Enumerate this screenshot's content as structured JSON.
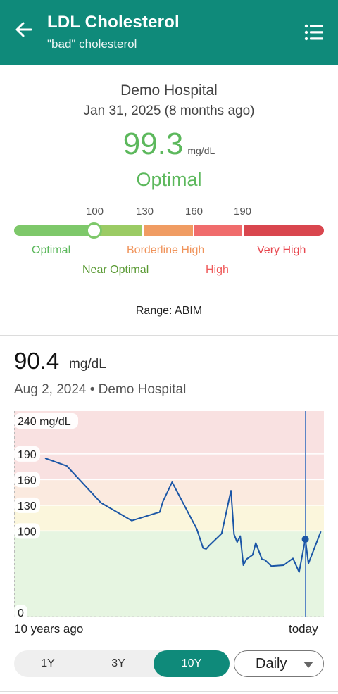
{
  "header": {
    "title": "LDL Cholesterol",
    "subtitle": "\"bad\" cholesterol",
    "back_icon": "arrow-left-icon",
    "menu_icon": "list-icon"
  },
  "latest": {
    "source": "Demo Hospital",
    "date": "Jan 31, 2025 (8 months ago)",
    "value": "99.3",
    "unit": "mg/dL",
    "status": "Optimal"
  },
  "range_bar": {
    "current_value": 99.3,
    "ticks": [
      "100",
      "130",
      "160",
      "190"
    ],
    "zones": {
      "optimal": "Optimal",
      "near_optimal": "Near Optimal",
      "borderline_high": "Borderline High",
      "high": "High",
      "very_high": "Very High"
    },
    "source_label": "Range: ABIM",
    "colors": {
      "optimal": "#7ec86a",
      "near_optimal": "#9bcb64",
      "borderline_high": "#f09c63",
      "high": "#f06c6c",
      "very_high": "#d9464e"
    }
  },
  "selected": {
    "value": "90.4",
    "unit": "mg/dL",
    "meta": "Aug 2, 2024  •  Demo Hospital"
  },
  "chart": {
    "y_tick_labels": [
      "240 mg/dL",
      "190",
      "160",
      "130",
      "100",
      "0"
    ],
    "x_start_label": "10 years ago",
    "x_end_label": "today"
  },
  "chart_data": {
    "type": "line",
    "ylabel": "mg/dL",
    "ylim": [
      0,
      240
    ],
    "y_ticks": [
      0,
      100,
      130,
      160,
      190,
      240
    ],
    "x_range_years_ago": [
      10,
      0
    ],
    "series": [
      {
        "values": [
          {
            "years_ago": 9.0,
            "value": 185
          },
          {
            "years_ago": 8.3,
            "value": 176
          },
          {
            "years_ago": 7.2,
            "value": 133
          },
          {
            "years_ago": 6.2,
            "value": 112
          },
          {
            "years_ago": 5.4,
            "value": 121
          },
          {
            "years_ago": 5.3,
            "value": 122
          },
          {
            "years_ago": 5.2,
            "value": 134
          },
          {
            "years_ago": 4.9,
            "value": 157
          },
          {
            "years_ago": 4.1,
            "value": 102
          },
          {
            "years_ago": 3.9,
            "value": 80
          },
          {
            "years_ago": 3.8,
            "value": 79
          },
          {
            "years_ago": 3.7,
            "value": 83
          },
          {
            "years_ago": 3.3,
            "value": 97
          },
          {
            "years_ago": 3.0,
            "value": 147
          },
          {
            "years_ago": 2.9,
            "value": 96
          },
          {
            "years_ago": 2.8,
            "value": 87
          },
          {
            "years_ago": 2.7,
            "value": 94
          },
          {
            "years_ago": 2.6,
            "value": 60
          },
          {
            "years_ago": 2.5,
            "value": 67
          },
          {
            "years_ago": 2.3,
            "value": 72
          },
          {
            "years_ago": 2.2,
            "value": 86
          },
          {
            "years_ago": 2.0,
            "value": 67
          },
          {
            "years_ago": 1.9,
            "value": 66
          },
          {
            "years_ago": 1.7,
            "value": 59
          },
          {
            "years_ago": 1.3,
            "value": 60
          },
          {
            "years_ago": 1.0,
            "value": 68
          },
          {
            "years_ago": 0.8,
            "value": 52
          },
          {
            "years_ago": 0.6,
            "value": 90.4
          },
          {
            "years_ago": 0.5,
            "value": 62
          },
          {
            "years_ago": 0.1,
            "value": 99.3
          }
        ]
      }
    ],
    "selected_point": {
      "years_ago": 0.6,
      "value": 90.4
    },
    "line_color": "#1b56a6",
    "band_colors": {
      "0-100": "#e6f5e1",
      "100-130": "#fbf6dc",
      "130-160": "#fbeadf",
      "160-240": "#f9e1e1"
    }
  },
  "controls": {
    "ranges": [
      "1Y",
      "3Y",
      "10Y"
    ],
    "active_range": "10Y",
    "granularity": "Daily"
  }
}
